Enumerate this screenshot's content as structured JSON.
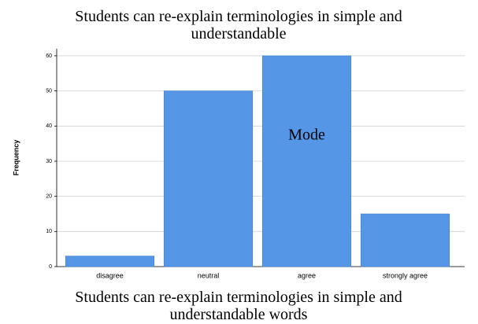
{
  "chart_data": {
    "type": "bar",
    "title": "Students can re-explain terminologies in simple and understandable",
    "x_label": "Students can re-explain terminologies in simple and understandable words",
    "y_label": "Frequency",
    "categories": [
      "disagree",
      "neutral",
      "agree",
      "strongly agree"
    ],
    "values": [
      3,
      50,
      60,
      15
    ],
    "color": "#5596e6",
    "ylim": [
      0,
      62
    ],
    "yticks": [
      0,
      10,
      20,
      30,
      40,
      50,
      60
    ],
    "grid": true,
    "annotation": "Mode"
  }
}
